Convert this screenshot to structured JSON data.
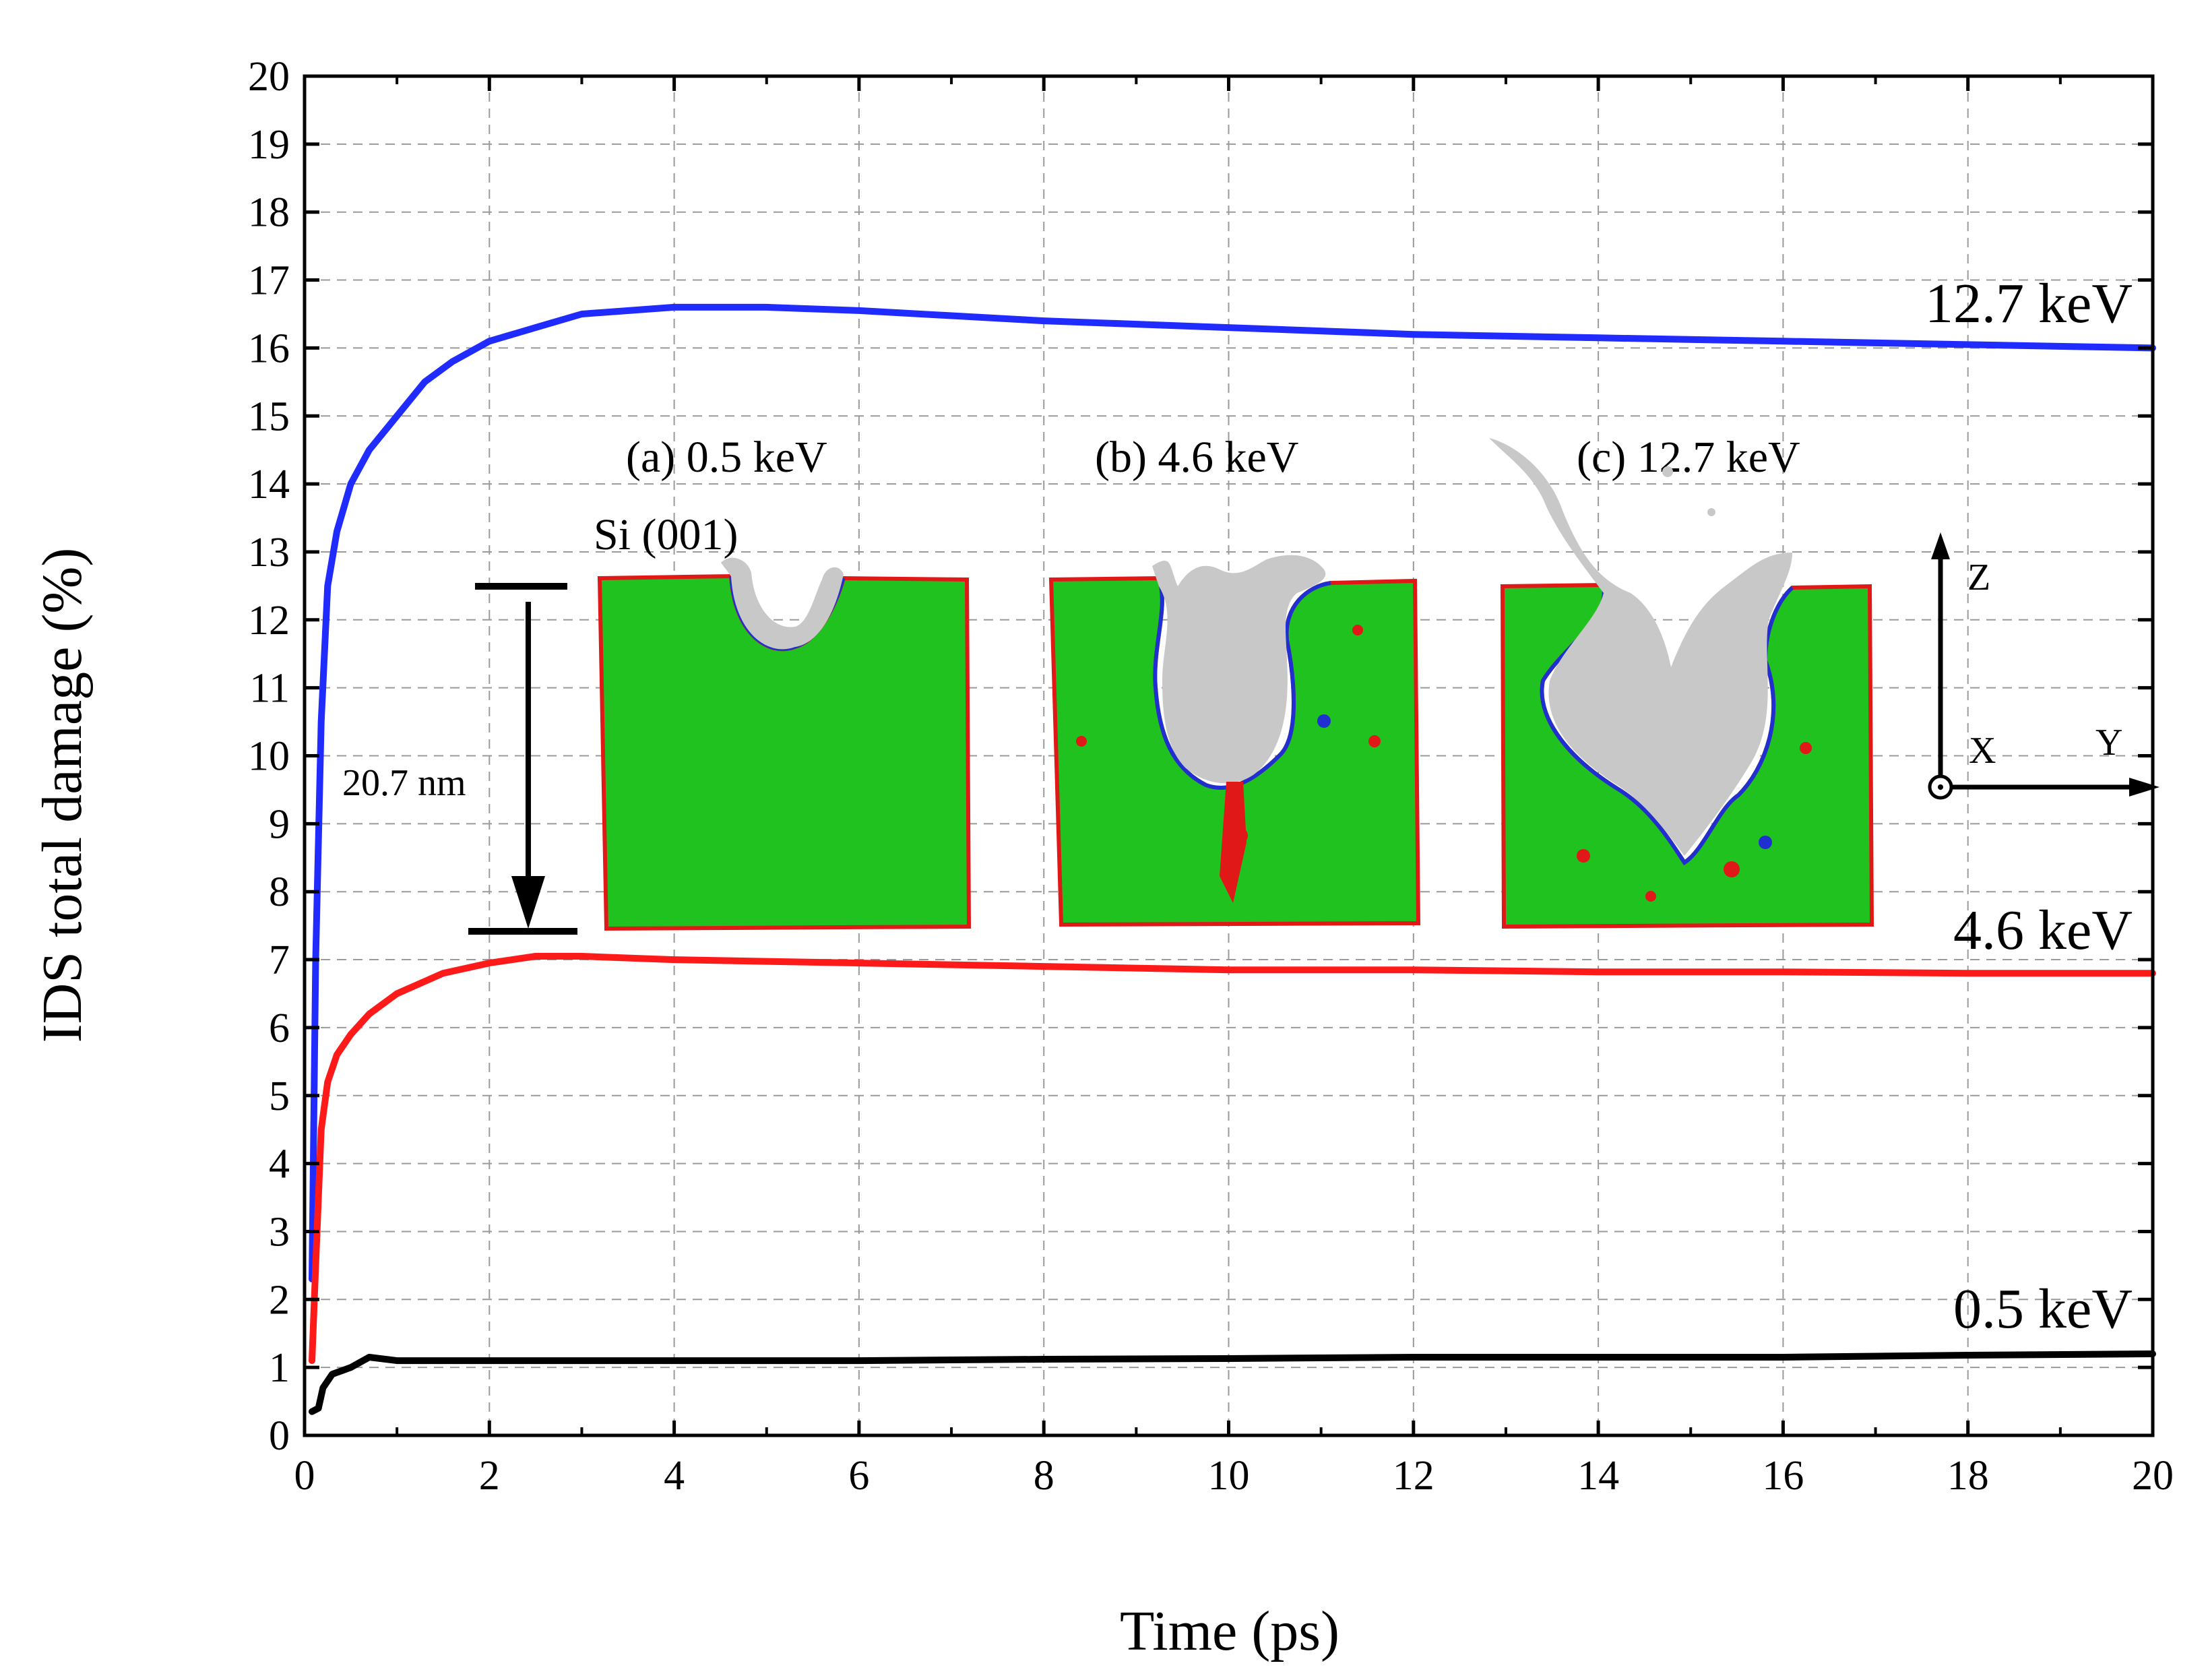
{
  "colors": {
    "blue_series": "#1f2bff",
    "red_series": "#ff1a1a",
    "black_series": "#000000",
    "crystal_green": "#1fc21f",
    "damage_gray": "#c8c8c8",
    "interface_red": "#e01818",
    "interface_blue": "#2030d0"
  },
  "chart_data": {
    "type": "line",
    "xlabel": "Time (ps)",
    "ylabel": "IDS total damage (%)",
    "xlim": [
      0,
      20
    ],
    "ylim": [
      0,
      20
    ],
    "x_ticks": [
      "0",
      "2",
      "4",
      "6",
      "8",
      "10",
      "12",
      "14",
      "16",
      "18",
      "20"
    ],
    "y_ticks": [
      "0",
      "1",
      "2",
      "3",
      "4",
      "5",
      "6",
      "7",
      "8",
      "9",
      "10",
      "11",
      "12",
      "13",
      "14",
      "15",
      "16",
      "17",
      "18",
      "19",
      "20"
    ],
    "grid": true,
    "series": [
      {
        "name": "12.7 keV",
        "color": "#1f2bff",
        "x": [
          0.08,
          0.12,
          0.18,
          0.25,
          0.35,
          0.5,
          0.7,
          1.0,
          1.3,
          1.6,
          2.0,
          2.5,
          3.0,
          4.0,
          5.0,
          6.0,
          8.0,
          10.0,
          12.0,
          14.0,
          16.0,
          18.0,
          20.0
        ],
        "y": [
          2.3,
          7.0,
          10.5,
          12.5,
          13.3,
          14.0,
          14.5,
          15.0,
          15.5,
          15.8,
          16.1,
          16.3,
          16.5,
          16.6,
          16.6,
          16.55,
          16.4,
          16.3,
          16.2,
          16.15,
          16.1,
          16.05,
          16.0
        ]
      },
      {
        "name": "4.6 keV",
        "color": "#ff1a1a",
        "x": [
          0.08,
          0.12,
          0.18,
          0.25,
          0.35,
          0.5,
          0.7,
          1.0,
          1.5,
          2.0,
          2.5,
          3.0,
          4.0,
          6.0,
          8.0,
          10.0,
          12.0,
          14.0,
          16.0,
          18.0,
          20.0
        ],
        "y": [
          1.1,
          2.5,
          4.5,
          5.2,
          5.6,
          5.9,
          6.2,
          6.5,
          6.8,
          6.95,
          7.05,
          7.05,
          7.0,
          6.95,
          6.9,
          6.85,
          6.85,
          6.82,
          6.82,
          6.8,
          6.8
        ]
      },
      {
        "name": "0.5 keV",
        "color": "#000000",
        "x": [
          0.08,
          0.15,
          0.2,
          0.3,
          0.5,
          0.7,
          1.0,
          2.0,
          4.0,
          6.0,
          8.0,
          10.0,
          12.0,
          14.0,
          16.0,
          18.0,
          20.0
        ],
        "y": [
          0.35,
          0.4,
          0.7,
          0.9,
          1.0,
          1.15,
          1.1,
          1.1,
          1.1,
          1.1,
          1.12,
          1.13,
          1.15,
          1.15,
          1.15,
          1.18,
          1.2
        ]
      }
    ],
    "annotations": {
      "series_label_1": "12.7 keV",
      "series_label_2": "4.6 keV",
      "series_label_3": "0.5 keV",
      "inset_a": "(a) 0.5 keV",
      "inset_b": "(b) 4.6 keV",
      "inset_c": "(c) 12.7 keV",
      "substrate": "Si (001)",
      "depth": "20.7 nm",
      "axis_z": "Z",
      "axis_x": "X",
      "axis_y": "Y"
    }
  }
}
